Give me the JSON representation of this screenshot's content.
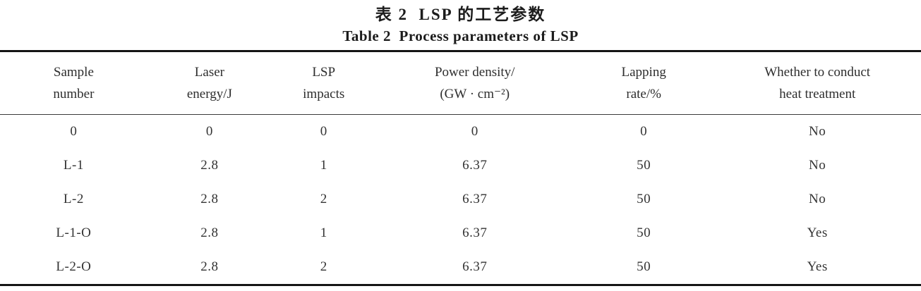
{
  "page": {
    "background_color": "#ffffff",
    "text_color": "#2e2e2e",
    "rule_color": "#151515"
  },
  "titles": {
    "chinese": "表 2  LSP 的工艺参数",
    "english": "Table 2  Process parameters of LSP"
  },
  "table": {
    "columns": [
      {
        "line1": "Sample",
        "line2": "number"
      },
      {
        "line1": "Laser",
        "line2": "energy/J"
      },
      {
        "line1": "LSP",
        "line2": "impacts"
      },
      {
        "line1": "Power density/",
        "line2": "(GW · cm⁻²)"
      },
      {
        "line1": "Lapping",
        "line2": "rate/%"
      },
      {
        "line1": "Whether to conduct",
        "line2": "heat treatment"
      }
    ],
    "rows": [
      [
        "0",
        "0",
        "0",
        "0",
        "0",
        "No"
      ],
      [
        "L-1",
        "2.8",
        "1",
        "6.37",
        "50",
        "No"
      ],
      [
        "L-2",
        "2.8",
        "2",
        "6.37",
        "50",
        "No"
      ],
      [
        "L-1-O",
        "2.8",
        "1",
        "6.37",
        "50",
        "Yes"
      ],
      [
        "L-2-O",
        "2.8",
        "2",
        "6.37",
        "50",
        "Yes"
      ]
    ]
  },
  "chart_data": {
    "type": "table",
    "title": "Table 2 Process parameters of LSP",
    "title_chinese": "表 2 LSP 的工艺参数",
    "columns": [
      "Sample number",
      "Laser energy/J",
      "LSP impacts",
      "Power density/(GW · cm⁻²)",
      "Lapping rate/%",
      "Whether to conduct heat treatment"
    ],
    "rows": [
      [
        "0",
        "0",
        "0",
        "0",
        "0",
        "No"
      ],
      [
        "L-1",
        "2.8",
        "1",
        "6.37",
        "50",
        "No"
      ],
      [
        "L-2",
        "2.8",
        "2",
        "6.37",
        "50",
        "No"
      ],
      [
        "L-1-O",
        "2.8",
        "1",
        "6.37",
        "50",
        "Yes"
      ],
      [
        "L-2-O",
        "2.8",
        "2",
        "6.37",
        "50",
        "Yes"
      ]
    ]
  }
}
